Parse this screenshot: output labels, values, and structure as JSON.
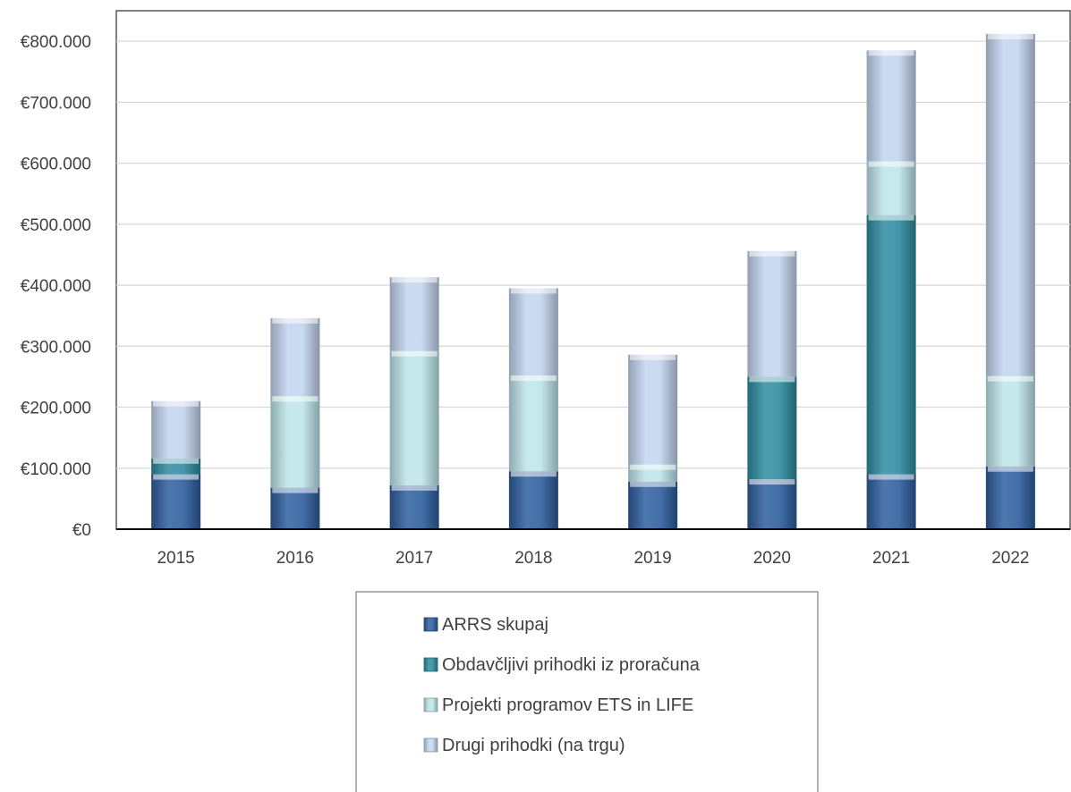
{
  "chart_data": {
    "type": "bar",
    "stacked": true,
    "categories": [
      "2015",
      "2016",
      "2017",
      "2018",
      "2019",
      "2020",
      "2021",
      "2022"
    ],
    "series": [
      {
        "name": "ARRS skupaj",
        "color": "#2e5f9e",
        "values": [
          90000,
          68000,
          72000,
          95000,
          78000,
          82000,
          90000,
          103000
        ]
      },
      {
        "name": "Obdavčljivi prihodki iz proračuna",
        "color": "#2f8ca0",
        "values": [
          26000,
          0,
          0,
          0,
          0,
          168000,
          425000,
          0
        ]
      },
      {
        "name": "Projekti programov ETS in LIFE",
        "color": "#bde5ea",
        "values": [
          0,
          150000,
          220000,
          157000,
          28000,
          0,
          88000,
          148000
        ]
      },
      {
        "name": "Drugi prihodki (na trgu)",
        "color": "#c3d5ee",
        "values": [
          94000,
          128000,
          121000,
          143000,
          180000,
          206000,
          182000,
          561000
        ]
      }
    ],
    "ylim": [
      0,
      850000
    ],
    "yticks": [
      "€0",
      "€100.000",
      "€200.000",
      "€300.000",
      "€400.000",
      "€500.000",
      "€600.000",
      "€700.000",
      "€800.000"
    ],
    "grid": true,
    "legend_position": "bottom"
  }
}
